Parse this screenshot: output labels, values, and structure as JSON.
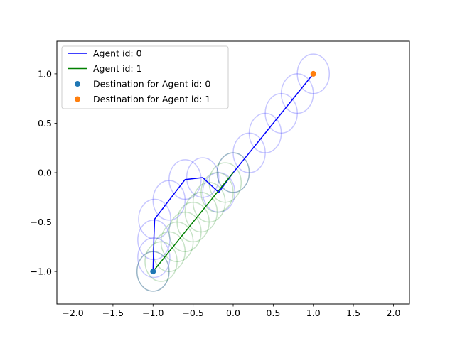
{
  "chart_data": {
    "type": "line",
    "title": "",
    "xlabel": "",
    "ylabel": "",
    "xlim": [
      -2.2,
      2.2
    ],
    "ylim": [
      -1.33,
      1.33
    ],
    "xticks": [
      -2.0,
      -1.5,
      -1.0,
      -0.5,
      0.0,
      0.5,
      1.0,
      1.5,
      2.0
    ],
    "xtick_labels": [
      "−2.0",
      "−1.5",
      "−1.0",
      "−0.5",
      "0.0",
      "0.5",
      "1.0",
      "1.5",
      "2.0"
    ],
    "yticks": [
      -1.0,
      -0.5,
      0.0,
      0.5,
      1.0
    ],
    "ytick_labels": [
      "−1.0",
      "−0.5",
      "0.0",
      "0.5",
      "1.0"
    ],
    "grid": false,
    "legend_position": "top-left",
    "series": [
      {
        "name": "Agent id: 0",
        "kind": "line",
        "color": "#0000ff",
        "x": [
          -1.0,
          -0.99,
          -0.98,
          -0.8,
          -0.6,
          -0.38,
          -0.18,
          0.0,
          0.2,
          0.4,
          0.6,
          0.8,
          1.0
        ],
        "y": [
          -1.0,
          -0.68,
          -0.47,
          -0.28,
          -0.07,
          -0.05,
          -0.2,
          -0.0,
          0.2,
          0.4,
          0.6,
          0.8,
          1.0
        ]
      },
      {
        "name": "Agent id: 1",
        "kind": "line",
        "color": "#008000",
        "x": [
          -1.0,
          0.0
        ],
        "y": [
          -1.0,
          0.0
        ]
      },
      {
        "name": "Destination for Agent id: 0",
        "kind": "scatter",
        "color": "#1f77b4",
        "x": [
          -1.0
        ],
        "y": [
          -1.0
        ]
      },
      {
        "name": "Destination for Agent id: 1",
        "kind": "scatter",
        "color": "#ff7f0e",
        "x": [
          1.0
        ],
        "y": [
          1.0
        ]
      }
    ],
    "agent_circles": [
      {
        "agent": "Agent id: 0",
        "color": "#0000ff",
        "radius": 0.2,
        "centers": [
          [
            -1.0,
            -1.0
          ],
          [
            -0.99,
            -0.86
          ],
          [
            -0.99,
            -0.68
          ],
          [
            -0.98,
            -0.47
          ],
          [
            -0.8,
            -0.28
          ],
          [
            -0.6,
            -0.07
          ],
          [
            -0.38,
            -0.05
          ],
          [
            -0.18,
            -0.2
          ],
          [
            0.0,
            0.0
          ],
          [
            0.2,
            0.2
          ],
          [
            0.4,
            0.4
          ],
          [
            0.6,
            0.6
          ],
          [
            0.8,
            0.8
          ],
          [
            1.0,
            1.0
          ]
        ]
      },
      {
        "agent": "Agent id: 1",
        "color": "#008000",
        "radius": 0.2,
        "centers": [
          [
            -1.0,
            -1.0
          ],
          [
            -0.9,
            -0.9
          ],
          [
            -0.8,
            -0.8
          ],
          [
            -0.7,
            -0.7
          ],
          [
            -0.6,
            -0.6
          ],
          [
            -0.5,
            -0.5
          ],
          [
            -0.4,
            -0.4
          ],
          [
            -0.3,
            -0.3
          ],
          [
            -0.2,
            -0.2
          ],
          [
            -0.1,
            -0.1
          ],
          [
            0.0,
            0.0
          ]
        ]
      }
    ]
  }
}
